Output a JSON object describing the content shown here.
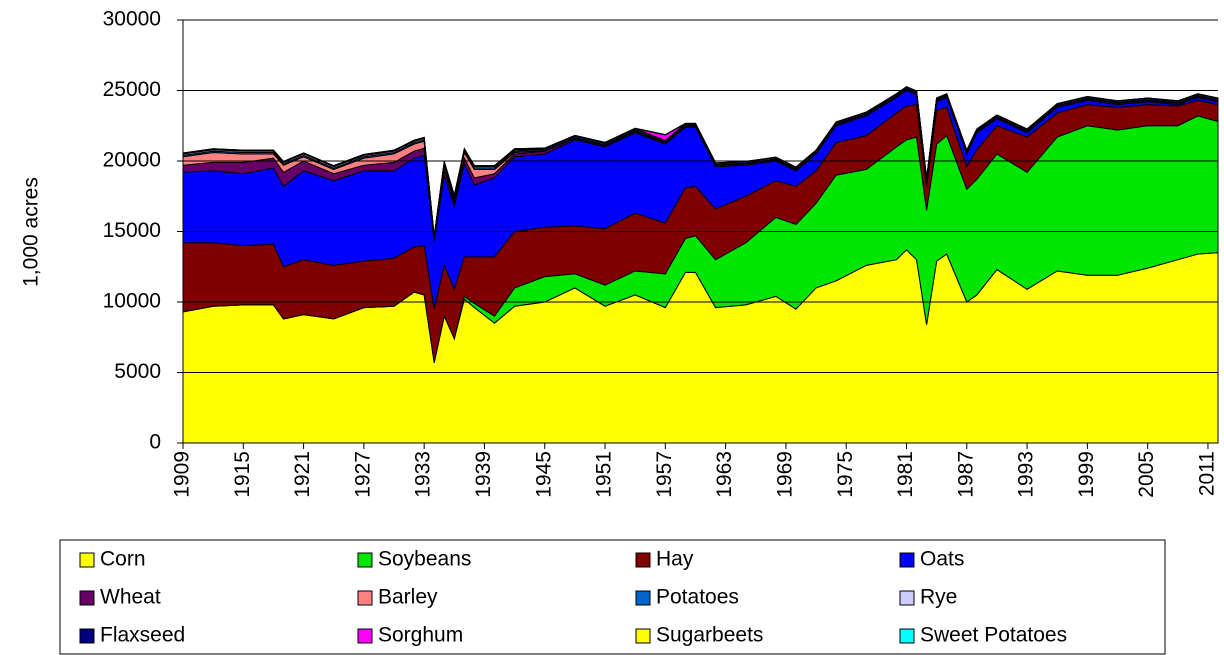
{
  "chart_data": {
    "type": "stacked_area",
    "y_label": "1,000 acres",
    "x": [
      1909,
      1912,
      1915,
      1918,
      1919,
      1921,
      1924,
      1927,
      1930,
      1932,
      1933,
      1934,
      1935,
      1936,
      1937,
      1938,
      1940,
      1942,
      1945,
      1948,
      1951,
      1954,
      1957,
      1959,
      1960,
      1962,
      1965,
      1968,
      1970,
      1972,
      1974,
      1977,
      1980,
      1981,
      1982,
      1983,
      1984,
      1985,
      1987,
      1988,
      1990,
      1993,
      1996,
      1999,
      2002,
      2005,
      2008,
      2010,
      2012
    ],
    "xlim": [
      1909,
      2012
    ],
    "xticks": [
      1909,
      1915,
      1921,
      1927,
      1933,
      1939,
      1945,
      1951,
      1957,
      1963,
      1969,
      1975,
      1981,
      1987,
      1993,
      1999,
      2005,
      2011
    ],
    "ylim": [
      0,
      30000
    ],
    "yticks": [
      0,
      5000,
      10000,
      15000,
      20000,
      25000,
      30000
    ],
    "grid": true,
    "legend": "bottom",
    "series": [
      {
        "name": "Corn",
        "color": "#ffff00",
        "values": [
          9300,
          9700,
          9800,
          9800,
          8800,
          9100,
          8800,
          9600,
          9700,
          10700,
          10500,
          5700,
          9000,
          7400,
          10200,
          9600,
          8500,
          9700,
          10000,
          11000,
          9700,
          10500,
          9600,
          12100,
          12100,
          9600,
          9800,
          10400,
          9500,
          11000,
          11500,
          12600,
          13000,
          13700,
          13000,
          8400,
          12900,
          13400,
          10000,
          10500,
          12300,
          10900,
          12200,
          11900,
          11900,
          12400,
          13000,
          13400,
          13500
        ]
      },
      {
        "name": "Soybeans",
        "color": "#00e600",
        "values": [
          0,
          0,
          0,
          0,
          0,
          0,
          0,
          0,
          0,
          0,
          0,
          0,
          0,
          0,
          200,
          300,
          500,
          1300,
          1800,
          1000,
          1500,
          1700,
          2400,
          2400,
          2600,
          3400,
          4400,
          5600,
          6000,
          6000,
          7500,
          6800,
          8000,
          7800,
          8700,
          8100,
          8300,
          8400,
          8000,
          8200,
          8200,
          8300,
          9500,
          10600,
          10300,
          10100,
          9500,
          9800,
          9300
        ]
      },
      {
        "name": "Hay",
        "color": "#800000",
        "values": [
          4900,
          4500,
          4200,
          4300,
          3700,
          3900,
          3800,
          3300,
          3400,
          3200,
          3500,
          3800,
          3600,
          3500,
          2800,
          3300,
          4200,
          4000,
          3500,
          3400,
          4000,
          4100,
          3600,
          3600,
          3500,
          3600,
          3300,
          2600,
          2700,
          2300,
          2300,
          2400,
          2400,
          2400,
          2300,
          1700,
          2400,
          2000,
          1600,
          2100,
          2000,
          2500,
          1700,
          1500,
          1600,
          1500,
          1400,
          1100,
          1200
        ]
      },
      {
        "name": "Oats",
        "color": "#0000ff",
        "values": [
          5000,
          5100,
          5100,
          5400,
          5700,
          6300,
          6000,
          6400,
          6200,
          6300,
          6400,
          4800,
          6400,
          5900,
          6600,
          5100,
          5600,
          5300,
          5200,
          6100,
          5800,
          5700,
          5600,
          4300,
          4200,
          3000,
          2200,
          1400,
          1100,
          1200,
          1200,
          1400,
          1100,
          1100,
          700,
          300,
          600,
          700,
          900,
          1200,
          500,
          300,
          400,
          300,
          200,
          200,
          100,
          200,
          200
        ]
      },
      {
        "name": "Wheat",
        "color": "#660066",
        "values": [
          500,
          600,
          800,
          700,
          1000,
          700,
          500,
          400,
          600,
          500,
          500,
          50,
          400,
          300,
          400,
          500,
          300,
          200,
          200,
          100,
          100,
          100,
          100,
          100,
          100,
          100,
          100,
          100,
          100,
          100,
          100,
          100,
          100,
          100,
          100,
          100,
          100,
          100,
          100,
          100,
          100,
          100,
          100,
          100,
          100,
          100,
          100,
          100,
          100
        ]
      },
      {
        "name": "Barley",
        "color": "#ff8080",
        "values": [
          600,
          700,
          600,
          300,
          500,
          300,
          300,
          500,
          600,
          500,
          500,
          50,
          300,
          200,
          400,
          600,
          300,
          100,
          50,
          50,
          50,
          50,
          50,
          50,
          50,
          50,
          50,
          50,
          50,
          50,
          50,
          50,
          50,
          50,
          50,
          50,
          50,
          50,
          50,
          50,
          50,
          50,
          50,
          50,
          50,
          50,
          50,
          50,
          50
        ]
      },
      {
        "name": "Potatoes",
        "color": "#0066cc",
        "values": [
          100,
          100,
          100,
          100,
          100,
          100,
          100,
          100,
          100,
          100,
          100,
          100,
          100,
          100,
          100,
          100,
          100,
          100,
          100,
          100,
          100,
          100,
          100,
          100,
          100,
          100,
          100,
          100,
          100,
          100,
          100,
          100,
          100,
          100,
          100,
          100,
          100,
          100,
          100,
          100,
          100,
          100,
          100,
          100,
          100,
          100,
          100,
          100,
          100
        ]
      },
      {
        "name": "Rye",
        "color": "#ccccff",
        "values": [
          100,
          100,
          100,
          100,
          100,
          100,
          100,
          100,
          100,
          100,
          100,
          100,
          100,
          100,
          100,
          100,
          100,
          100,
          0,
          0,
          0,
          0,
          0,
          0,
          0,
          0,
          0,
          0,
          0,
          0,
          0,
          0,
          0,
          0,
          0,
          0,
          0,
          0,
          0,
          0,
          0,
          0,
          0,
          0,
          0,
          0,
          0,
          0,
          0
        ]
      },
      {
        "name": "Flaxseed",
        "color": "#000080",
        "values": [
          50,
          50,
          50,
          50,
          50,
          50,
          50,
          50,
          50,
          50,
          50,
          50,
          50,
          50,
          50,
          50,
          50,
          50,
          50,
          50,
          50,
          50,
          0,
          0,
          0,
          0,
          0,
          0,
          0,
          0,
          0,
          0,
          0,
          0,
          0,
          0,
          0,
          0,
          0,
          0,
          0,
          0,
          0,
          0,
          0,
          0,
          0,
          0,
          0
        ]
      },
      {
        "name": "Sorghum",
        "color": "#ff00ff",
        "values": [
          0,
          0,
          0,
          0,
          0,
          0,
          0,
          0,
          0,
          0,
          0,
          0,
          0,
          0,
          0,
          0,
          0,
          0,
          0,
          0,
          0,
          0,
          400,
          0,
          0,
          0,
          0,
          0,
          0,
          0,
          0,
          0,
          0,
          0,
          0,
          0,
          0,
          0,
          0,
          0,
          0,
          0,
          0,
          0,
          0,
          0,
          0,
          0,
          0
        ]
      },
      {
        "name": "Sugarbeets",
        "color": "#ffff00",
        "values": [
          20,
          20,
          20,
          20,
          20,
          20,
          20,
          20,
          20,
          20,
          20,
          20,
          20,
          20,
          20,
          20,
          20,
          20,
          20,
          20,
          20,
          20,
          20,
          20,
          20,
          20,
          20,
          20,
          20,
          20,
          20,
          20,
          20,
          20,
          20,
          20,
          20,
          20,
          20,
          20,
          20,
          20,
          20,
          20,
          20,
          20,
          20,
          20,
          20
        ]
      },
      {
        "name": "Sweet Potatoes",
        "color": "#00ffff",
        "values": [
          0,
          0,
          0,
          0,
          0,
          0,
          0,
          0,
          0,
          0,
          0,
          0,
          0,
          0,
          0,
          0,
          0,
          0,
          0,
          0,
          0,
          0,
          0,
          0,
          0,
          0,
          0,
          0,
          0,
          0,
          0,
          0,
          0,
          0,
          0,
          0,
          0,
          0,
          0,
          0,
          0,
          0,
          0,
          0,
          0,
          0,
          0,
          0,
          0
        ]
      }
    ]
  }
}
